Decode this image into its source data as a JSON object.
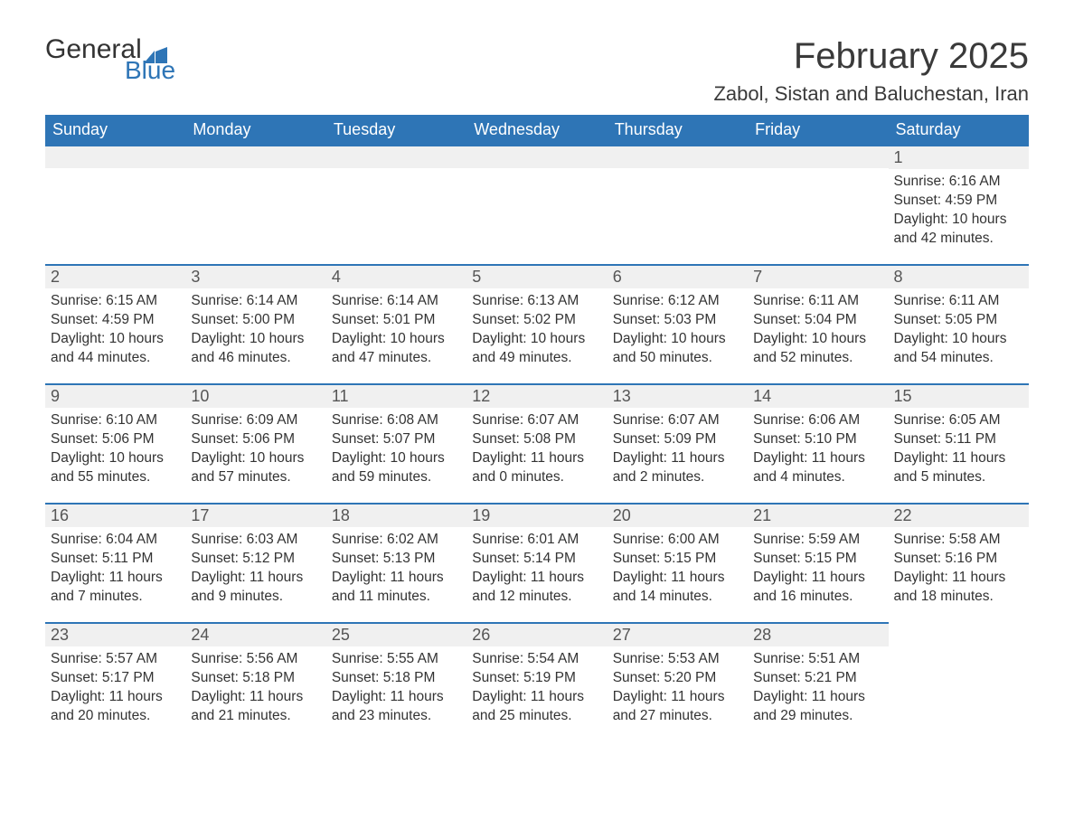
{
  "brand": {
    "general": "General",
    "blue": "Blue"
  },
  "title": "February 2025",
  "location": "Zabol, Sistan and Baluchestan, Iran",
  "colors": {
    "header_bg": "#2e75b6",
    "header_text": "#ffffff",
    "daynum_bg": "#f0f0f0",
    "row_border": "#2e75b6",
    "body_text": "#333333",
    "logo_blue": "#2e75b6"
  },
  "weekdays": [
    "Sunday",
    "Monday",
    "Tuesday",
    "Wednesday",
    "Thursday",
    "Friday",
    "Saturday"
  ],
  "weeks": [
    [
      null,
      null,
      null,
      null,
      null,
      null,
      {
        "n": "1",
        "sunrise": "6:16 AM",
        "sunset": "4:59 PM",
        "daylight": "10 hours and 42 minutes."
      }
    ],
    [
      {
        "n": "2",
        "sunrise": "6:15 AM",
        "sunset": "4:59 PM",
        "daylight": "10 hours and 44 minutes."
      },
      {
        "n": "3",
        "sunrise": "6:14 AM",
        "sunset": "5:00 PM",
        "daylight": "10 hours and 46 minutes."
      },
      {
        "n": "4",
        "sunrise": "6:14 AM",
        "sunset": "5:01 PM",
        "daylight": "10 hours and 47 minutes."
      },
      {
        "n": "5",
        "sunrise": "6:13 AM",
        "sunset": "5:02 PM",
        "daylight": "10 hours and 49 minutes."
      },
      {
        "n": "6",
        "sunrise": "6:12 AM",
        "sunset": "5:03 PM",
        "daylight": "10 hours and 50 minutes."
      },
      {
        "n": "7",
        "sunrise": "6:11 AM",
        "sunset": "5:04 PM",
        "daylight": "10 hours and 52 minutes."
      },
      {
        "n": "8",
        "sunrise": "6:11 AM",
        "sunset": "5:05 PM",
        "daylight": "10 hours and 54 minutes."
      }
    ],
    [
      {
        "n": "9",
        "sunrise": "6:10 AM",
        "sunset": "5:06 PM",
        "daylight": "10 hours and 55 minutes."
      },
      {
        "n": "10",
        "sunrise": "6:09 AM",
        "sunset": "5:06 PM",
        "daylight": "10 hours and 57 minutes."
      },
      {
        "n": "11",
        "sunrise": "6:08 AM",
        "sunset": "5:07 PM",
        "daylight": "10 hours and 59 minutes."
      },
      {
        "n": "12",
        "sunrise": "6:07 AM",
        "sunset": "5:08 PM",
        "daylight": "11 hours and 0 minutes."
      },
      {
        "n": "13",
        "sunrise": "6:07 AM",
        "sunset": "5:09 PM",
        "daylight": "11 hours and 2 minutes."
      },
      {
        "n": "14",
        "sunrise": "6:06 AM",
        "sunset": "5:10 PM",
        "daylight": "11 hours and 4 minutes."
      },
      {
        "n": "15",
        "sunrise": "6:05 AM",
        "sunset": "5:11 PM",
        "daylight": "11 hours and 5 minutes."
      }
    ],
    [
      {
        "n": "16",
        "sunrise": "6:04 AM",
        "sunset": "5:11 PM",
        "daylight": "11 hours and 7 minutes."
      },
      {
        "n": "17",
        "sunrise": "6:03 AM",
        "sunset": "5:12 PM",
        "daylight": "11 hours and 9 minutes."
      },
      {
        "n": "18",
        "sunrise": "6:02 AM",
        "sunset": "5:13 PM",
        "daylight": "11 hours and 11 minutes."
      },
      {
        "n": "19",
        "sunrise": "6:01 AM",
        "sunset": "5:14 PM",
        "daylight": "11 hours and 12 minutes."
      },
      {
        "n": "20",
        "sunrise": "6:00 AM",
        "sunset": "5:15 PM",
        "daylight": "11 hours and 14 minutes."
      },
      {
        "n": "21",
        "sunrise": "5:59 AM",
        "sunset": "5:15 PM",
        "daylight": "11 hours and 16 minutes."
      },
      {
        "n": "22",
        "sunrise": "5:58 AM",
        "sunset": "5:16 PM",
        "daylight": "11 hours and 18 minutes."
      }
    ],
    [
      {
        "n": "23",
        "sunrise": "5:57 AM",
        "sunset": "5:17 PM",
        "daylight": "11 hours and 20 minutes."
      },
      {
        "n": "24",
        "sunrise": "5:56 AM",
        "sunset": "5:18 PM",
        "daylight": "11 hours and 21 minutes."
      },
      {
        "n": "25",
        "sunrise": "5:55 AM",
        "sunset": "5:18 PM",
        "daylight": "11 hours and 23 minutes."
      },
      {
        "n": "26",
        "sunrise": "5:54 AM",
        "sunset": "5:19 PM",
        "daylight": "11 hours and 25 minutes."
      },
      {
        "n": "27",
        "sunrise": "5:53 AM",
        "sunset": "5:20 PM",
        "daylight": "11 hours and 27 minutes."
      },
      {
        "n": "28",
        "sunrise": "5:51 AM",
        "sunset": "5:21 PM",
        "daylight": "11 hours and 29 minutes."
      },
      null
    ]
  ],
  "labels": {
    "sunrise": "Sunrise: ",
    "sunset": "Sunset: ",
    "daylight": "Daylight: "
  }
}
